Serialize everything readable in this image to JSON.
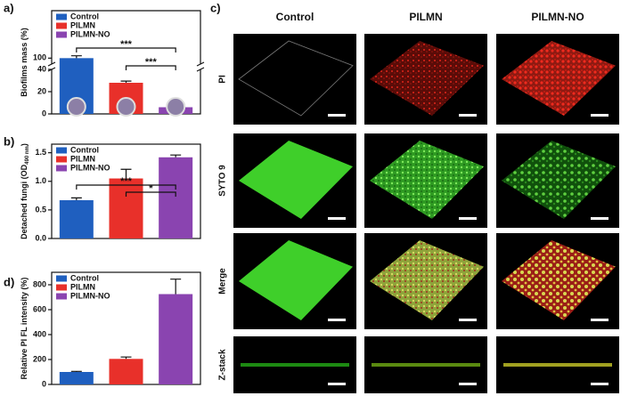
{
  "chart_data": [
    {
      "type": "bar",
      "panel_label": "a)",
      "ylabel": "Biofilms mass (%)",
      "ylim": [
        0,
        140
      ],
      "ybreak": [
        40,
        95
      ],
      "yticks": [
        0,
        20,
        40,
        100
      ],
      "series": [
        {
          "name": "Control",
          "color": "#1f5fbf",
          "values": [
            100
          ],
          "errors": [
            2
          ]
        },
        {
          "name": "PILMN",
          "color": "#e8302a",
          "values": [
            28
          ],
          "errors": [
            1.5
          ]
        },
        {
          "name": "PILMN-NO",
          "color": "#8a44b0",
          "values": [
            6
          ],
          "errors": [
            1
          ]
        }
      ],
      "annotations": [
        {
          "text": "***",
          "from": 0,
          "to": 2
        },
        {
          "text": "***",
          "from": 1,
          "to": 2
        }
      ]
    },
    {
      "type": "bar",
      "panel_label": "b)",
      "ylabel": "Detached fungi (OD",
      "ylabel_sub": "490 nm",
      "ylabel_end": ")",
      "ylim": [
        0,
        1.65
      ],
      "yticks": [
        {
          "value": 0,
          "label": "0.0"
        },
        {
          "value": 0.5,
          "label": "0.5"
        },
        {
          "value": 1,
          "label": "1.0"
        },
        {
          "value": 1.5,
          "label": "1.5"
        }
      ],
      "series": [
        {
          "name": "Control",
          "color": "#1f5fbf",
          "values": [
            0.67
          ],
          "errors": [
            0.04
          ]
        },
        {
          "name": "PILMN",
          "color": "#e8302a",
          "values": [
            1.05
          ],
          "errors": [
            0.16
          ]
        },
        {
          "name": "PILMN-NO",
          "color": "#8a44b0",
          "values": [
            1.42
          ],
          "errors": [
            0.04
          ]
        }
      ],
      "annotations": [
        {
          "text": "***",
          "from": 0,
          "to": 2
        },
        {
          "text": "*",
          "from": 1,
          "to": 2
        }
      ]
    },
    {
      "type": "bar",
      "panel_label": "d)",
      "ylabel": "Relative PI FL intensity (%)",
      "ylim": [
        0,
        900
      ],
      "yticks": [
        0,
        200,
        400,
        600,
        800
      ],
      "series": [
        {
          "name": "Control",
          "color": "#1f5fbf",
          "values": [
            100
          ],
          "errors": [
            5
          ]
        },
        {
          "name": "PILMN",
          "color": "#e8302a",
          "values": [
            205
          ],
          "errors": [
            15
          ]
        },
        {
          "name": "PILMN-NO",
          "color": "#8a44b0",
          "values": [
            725
          ],
          "errors": [
            120
          ]
        }
      ],
      "annotations": []
    }
  ],
  "image_panel": {
    "panel_label": "c)",
    "columns": [
      "Control",
      "PILMN",
      "PILMN-NO"
    ],
    "rows": [
      "PI",
      "SYTO 9",
      "Merge",
      "Z-stack"
    ]
  }
}
